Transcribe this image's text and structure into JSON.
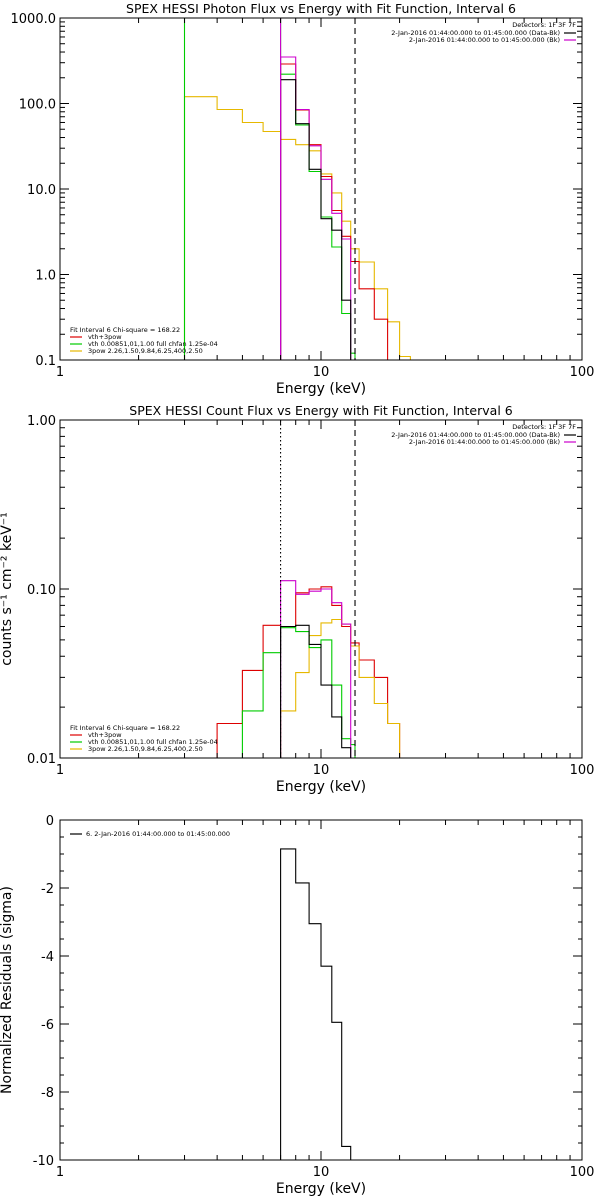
{
  "chart_data": [
    {
      "type": "line",
      "title": "SPEX HESSI Photon Flux vs Energy with Fit Function, Interval 6",
      "xlabel": "Energy  (keV)",
      "ylabel": "",
      "xscale": "log",
      "yscale": "log",
      "xlim": [
        1,
        100
      ],
      "ylim": [
        0.1,
        1000
      ],
      "xticks": [
        "1",
        "10",
        "100"
      ],
      "yticks": [
        "0.1",
        "1.0",
        "10.0",
        "100.0",
        "1000.0"
      ],
      "detectors": "Detectors: 1F 3F 7F",
      "time_legend": [
        {
          "text": "2-Jan-2016 01:44:00.000 to 01:45:00.000 (Data-Bk)",
          "color": "#000000"
        },
        {
          "text": "2-Jan-2016 01:44:00.000 to 01:45:00.000 (Bk)",
          "color": "#cc00cc"
        }
      ],
      "fit_legend_header": "Fit Interval  6   Chi-square = 168.22",
      "fit_legend": [
        {
          "text": "vth+3pow",
          "color": "#dd0000"
        },
        {
          "text": "vth 0.00851,01,1.00  full chfan 1.25e-04",
          "color": "#00cc00"
        },
        {
          "text": "3pow 2.26,1.50,9.84,6.25,400,2.50",
          "color": "#e6b800"
        }
      ],
      "vlines": [
        {
          "x": 7.0,
          "style": "solid",
          "color": "#cc00cc"
        },
        {
          "x": 13.5,
          "style": "dashed",
          "color": "#000000"
        }
      ],
      "series": [
        {
          "color": "#e6b800",
          "edges": [
            3,
            4,
            5,
            6,
            7,
            8,
            9,
            10,
            11,
            12,
            13,
            14,
            16,
            18,
            20,
            22
          ],
          "values": [
            120,
            85,
            60,
            47,
            38,
            33,
            28,
            15,
            9,
            4.2,
            2.0,
            1.4,
            0.68,
            0.28,
            0.11
          ]
        },
        {
          "color": "#00cc00",
          "edges": [
            3,
            7,
            8,
            9,
            10,
            11,
            12,
            13,
            13.5
          ],
          "values": [
            1000,
            220,
            56,
            16,
            4.7,
            2.1,
            0.35,
            0.12
          ]
        },
        {
          "color": "#dd0000",
          "edges": [
            7,
            8,
            9,
            10,
            11,
            12,
            13,
            14,
            16,
            18
          ],
          "values": [
            290,
            84,
            33,
            14,
            5.6,
            2.8,
            1.42,
            0.68,
            0.3
          ]
        },
        {
          "color": "#cc00cc",
          "edges": [
            7,
            8,
            9,
            10,
            11,
            12,
            13
          ],
          "values": [
            350,
            85,
            32,
            13,
            5.2,
            2.6
          ]
        },
        {
          "color": "#000000",
          "edges": [
            7,
            8,
            9,
            10,
            11,
            12,
            13
          ],
          "values": [
            190,
            58,
            17,
            4.5,
            3.3,
            0.5
          ]
        }
      ]
    },
    {
      "type": "line",
      "title": "SPEX HESSI Count Flux vs Energy with Fit Function, Interval 6",
      "xlabel": "Energy  (keV)",
      "ylabel": "counts s⁻¹ cm⁻² keV⁻¹",
      "xscale": "log",
      "yscale": "log",
      "xlim": [
        1,
        100
      ],
      "ylim": [
        0.01,
        1.0
      ],
      "xticks": [
        "1",
        "10",
        "100"
      ],
      "yticks": [
        "0.01",
        "0.10",
        "1.00"
      ],
      "detectors": "Detectors: 1F 3F 7F",
      "time_legend": [
        {
          "text": "2-Jan-2016 01:44:00.000 to 01:45:00.000 (Data-Bk)",
          "color": "#000000"
        },
        {
          "text": "2-Jan-2016 01:44:00.000 to 01:45:00.000 (Bk)",
          "color": "#cc00cc"
        }
      ],
      "fit_legend_header": "Fit Interval  6   Chi-square = 168.22",
      "fit_legend": [
        {
          "text": "vth+3pow",
          "color": "#dd0000"
        },
        {
          "text": "vth 0.00851,01,1.00  full chfan 1.25e-04",
          "color": "#00cc00"
        },
        {
          "text": "3pow 2.26,1.50,9.84,6.25,400,2.50",
          "color": "#e6b800"
        }
      ],
      "vlines": [
        {
          "x": 7.0,
          "style": "dotted",
          "color": "#000000"
        },
        {
          "x": 13.5,
          "style": "dashed",
          "color": "#000000"
        }
      ],
      "series": [
        {
          "color": "#dd0000",
          "edges": [
            4,
            5,
            6,
            7,
            8,
            9,
            10,
            11,
            12,
            13,
            14,
            16,
            18,
            20
          ],
          "values": [
            0.016,
            0.033,
            0.061,
            0.06,
            0.095,
            0.1,
            0.103,
            0.08,
            0.06,
            0.048,
            0.038,
            0.03,
            0.016
          ]
        },
        {
          "color": "#e6b800",
          "edges": [
            7,
            8,
            9,
            10,
            11,
            12,
            13,
            14,
            16,
            18,
            20
          ],
          "values": [
            0.019,
            0.032,
            0.053,
            0.063,
            0.066,
            0.062,
            0.046,
            0.03,
            0.021,
            0.016
          ]
        },
        {
          "color": "#00cc00",
          "edges": [
            5,
            6,
            7,
            8,
            9,
            10,
            11,
            12,
            13,
            13.5
          ],
          "values": [
            0.019,
            0.042,
            0.059,
            0.056,
            0.045,
            0.05,
            0.027,
            0.013,
            0.012
          ]
        },
        {
          "color": "#cc00cc",
          "edges": [
            7,
            8,
            9,
            10,
            11,
            12,
            13
          ],
          "values": [
            0.112,
            0.093,
            0.097,
            0.1,
            0.083,
            0.062
          ]
        },
        {
          "color": "#000000",
          "edges": [
            7,
            8,
            9,
            10,
            11,
            12,
            13
          ],
          "values": [
            0.06,
            0.061,
            0.047,
            0.027,
            0.0175,
            0.0115
          ]
        }
      ]
    },
    {
      "type": "line",
      "title": "",
      "xlabel": "Energy  (keV)",
      "ylabel": "Normalized Residuals (sigma)",
      "xscale": "log",
      "yscale": "linear",
      "xlim": [
        1,
        100
      ],
      "ylim": [
        -10,
        0
      ],
      "xticks": [
        "1",
        "10",
        "100"
      ],
      "yticks": [
        "-10",
        "-8",
        "-6",
        "-4",
        "-2",
        "0"
      ],
      "legend": [
        {
          "text": "6.  2-Jan-2016 01:44:00.000 to 01:45:00.000",
          "color": "#000000"
        }
      ],
      "series": [
        {
          "color": "#000000",
          "edges": [
            7,
            8,
            9,
            10,
            11,
            12,
            13
          ],
          "values": [
            -0.85,
            -1.85,
            -3.05,
            -4.3,
            -5.95,
            -9.6
          ]
        }
      ]
    }
  ]
}
